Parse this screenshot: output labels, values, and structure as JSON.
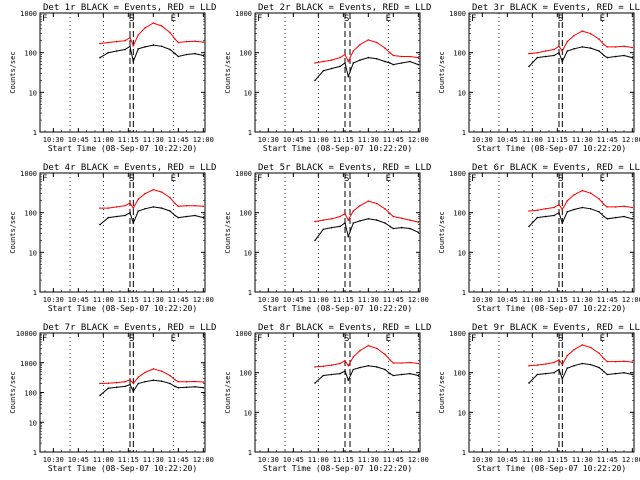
{
  "figure": {
    "xlabel": "Start Time (08-Sep-07 10:22:20)",
    "ylabel": "Counts/sec",
    "marker_labels": [
      "F",
      "S",
      "E"
    ],
    "series_colors": {
      "events": "#000000",
      "lld": "#ff0000"
    }
  },
  "chart_data": [
    {
      "type": "line",
      "title": "Det 1r BLACK = Events, RED = LLD",
      "xlabel": "Start Time (08-Sep-07 10:22:20)",
      "ylabel": "Counts/sec",
      "log_y": true,
      "x_ticks": [
        "10:30",
        "10:45",
        "11:00",
        "11:15",
        "11:30",
        "11:45",
        "12:00"
      ],
      "y_ticks": [
        "1",
        "10",
        "100",
        "1000"
      ],
      "ylim": [
        1,
        1000
      ],
      "x_time": [
        "10:58",
        "11:03",
        "11:08",
        "11:13",
        "11:16",
        "11:18",
        "11:21",
        "11:25",
        "11:30",
        "11:35",
        "11:40",
        "11:43",
        "11:45",
        "11:50",
        "11:55",
        "12:00"
      ],
      "series": [
        {
          "name": "Events",
          "values": [
            75,
            100,
            110,
            120,
            145,
            60,
            125,
            140,
            155,
            145,
            120,
            95,
            80,
            90,
            95,
            85
          ]
        },
        {
          "name": "LLD",
          "values": [
            170,
            180,
            190,
            200,
            240,
            150,
            280,
            420,
            560,
            470,
            320,
            220,
            180,
            190,
            195,
            185
          ]
        }
      ],
      "markers": {
        "F": "10:22",
        "S": "11:17",
        "E": "11:42"
      },
      "dashed": [
        "11:16",
        "11:18"
      ],
      "dotted": [
        "10:40",
        "11:00",
        "11:42"
      ]
    },
    {
      "type": "line",
      "title": "Det 2r BLACK = Events, RED = LLD",
      "xlabel": "Start Time (08-Sep-07 10:22:20)",
      "ylabel": "Counts/sec",
      "log_y": true,
      "x_ticks": [
        "10:30",
        "10:45",
        "11:00",
        "11:15",
        "11:30",
        "11:45",
        "12:00"
      ],
      "y_ticks": [
        "1",
        "10",
        "100",
        "1000"
      ],
      "ylim": [
        1,
        1000
      ],
      "x_time": [
        "10:58",
        "11:03",
        "11:08",
        "11:13",
        "11:16",
        "11:18",
        "11:21",
        "11:25",
        "11:30",
        "11:35",
        "11:40",
        "11:43",
        "11:45",
        "11:50",
        "11:55",
        "12:00"
      ],
      "series": [
        {
          "name": "Events",
          "values": [
            20,
            35,
            40,
            45,
            55,
            25,
            55,
            65,
            75,
            70,
            60,
            55,
            50,
            55,
            60,
            50
          ]
        },
        {
          "name": "LLD",
          "values": [
            55,
            60,
            65,
            75,
            90,
            60,
            110,
            160,
            210,
            180,
            130,
            100,
            85,
            80,
            80,
            75
          ]
        }
      ],
      "markers": {
        "F": "10:22",
        "S": "11:17",
        "E": "11:42"
      },
      "dashed": [
        "11:16",
        "11:19"
      ],
      "dotted": [
        "10:40",
        "11:00",
        "11:42"
      ]
    },
    {
      "type": "line",
      "title": "Det 3r BLACK = Events, RED = LLD",
      "xlabel": "Start Time (08-Sep-07 10:22:20)",
      "ylabel": "Counts/sec",
      "log_y": true,
      "x_ticks": [
        "10:30",
        "10:45",
        "11:00",
        "11:15",
        "11:30",
        "11:45",
        "12:00"
      ],
      "y_ticks": [
        "1",
        "10",
        "100",
        "1000"
      ],
      "ylim": [
        1,
        1000
      ],
      "x_time": [
        "10:58",
        "11:03",
        "11:08",
        "11:13",
        "11:16",
        "11:18",
        "11:21",
        "11:25",
        "11:30",
        "11:35",
        "11:40",
        "11:43",
        "11:45",
        "11:50",
        "11:55",
        "12:00"
      ],
      "series": [
        {
          "name": "Events",
          "values": [
            45,
            75,
            80,
            85,
            100,
            60,
            110,
            125,
            140,
            130,
            110,
            85,
            75,
            80,
            85,
            75
          ]
        },
        {
          "name": "LLD",
          "values": [
            95,
            100,
            110,
            120,
            145,
            110,
            190,
            270,
            350,
            300,
            220,
            160,
            140,
            140,
            145,
            135
          ]
        }
      ],
      "markers": {
        "F": "10:22",
        "S": "11:17",
        "E": "11:42"
      },
      "dashed": [
        "11:16",
        "11:18"
      ],
      "dotted": [
        "10:40",
        "11:00",
        "11:42"
      ]
    },
    {
      "type": "line",
      "title": "Det 4r BLACK = Events, RED = LLD",
      "xlabel": "Start Time (08-Sep-07 10:22:20)",
      "ylabel": "Counts/sec",
      "log_y": true,
      "x_ticks": [
        "10:30",
        "10:45",
        "11:00",
        "11:15",
        "11:30",
        "11:45",
        "12:00"
      ],
      "y_ticks": [
        "1",
        "10",
        "100",
        "1000"
      ],
      "ylim": [
        1,
        1000
      ],
      "x_time": [
        "10:58",
        "11:03",
        "11:08",
        "11:13",
        "11:16",
        "11:18",
        "11:21",
        "11:25",
        "11:30",
        "11:35",
        "11:40",
        "11:43",
        "11:45",
        "11:50",
        "11:55",
        "12:00"
      ],
      "series": [
        {
          "name": "Events",
          "values": [
            50,
            75,
            80,
            85,
            100,
            55,
            110,
            125,
            140,
            130,
            110,
            85,
            75,
            80,
            85,
            75
          ]
        },
        {
          "name": "LLD",
          "values": [
            130,
            130,
            140,
            150,
            175,
            130,
            220,
            300,
            380,
            330,
            240,
            170,
            145,
            150,
            150,
            145
          ]
        }
      ],
      "markers": {
        "F": "10:22",
        "S": "11:17",
        "E": "11:42"
      },
      "dashed": [
        "11:16",
        "11:18"
      ],
      "dotted": [
        "10:40",
        "11:00",
        "11:42"
      ]
    },
    {
      "type": "line",
      "title": "Det 5r BLACK = Events, RED = LLD",
      "xlabel": "Start Time (08-Sep-07 10:22:20)",
      "ylabel": "Counts/sec",
      "log_y": true,
      "x_ticks": [
        "10:30",
        "10:45",
        "11:00",
        "11:15",
        "11:30",
        "11:45",
        "12:00"
      ],
      "y_ticks": [
        "1",
        "10",
        "100",
        "1000"
      ],
      "ylim": [
        1,
        1000
      ],
      "x_time": [
        "10:58",
        "11:03",
        "11:08",
        "11:13",
        "11:16",
        "11:18",
        "11:21",
        "11:25",
        "11:30",
        "11:35",
        "11:40",
        "11:43",
        "11:45",
        "11:50",
        "11:55",
        "12:00"
      ],
      "series": [
        {
          "name": "Events",
          "values": [
            20,
            38,
            42,
            45,
            55,
            25,
            55,
            62,
            70,
            65,
            55,
            45,
            40,
            42,
            40,
            32
          ]
        },
        {
          "name": "LLD",
          "values": [
            60,
            65,
            70,
            80,
            95,
            65,
            110,
            150,
            195,
            170,
            125,
            95,
            80,
            72,
            65,
            58
          ]
        }
      ],
      "markers": {
        "F": "10:22",
        "S": "11:17",
        "E": "11:42"
      },
      "dashed": [
        "11:16",
        "11:19"
      ],
      "dotted": [
        "10:40",
        "11:00",
        "11:42"
      ]
    },
    {
      "type": "line",
      "title": "Det 6r BLACK = Events, RED = LLD",
      "xlabel": "Start Time (08-Sep-07 10:22:20)",
      "ylabel": "Counts/sec",
      "log_y": true,
      "x_ticks": [
        "10:30",
        "10:45",
        "11:00",
        "11:15",
        "11:30",
        "11:45",
        "12:00"
      ],
      "y_ticks": [
        "1",
        "10",
        "100",
        "1000"
      ],
      "ylim": [
        1,
        1000
      ],
      "x_time": [
        "10:58",
        "11:03",
        "11:08",
        "11:13",
        "11:16",
        "11:18",
        "11:21",
        "11:25",
        "11:30",
        "11:35",
        "11:40",
        "11:43",
        "11:45",
        "11:50",
        "11:55",
        "12:00"
      ],
      "series": [
        {
          "name": "Events",
          "values": [
            45,
            75,
            80,
            85,
            100,
            55,
            105,
            120,
            135,
            125,
            105,
            80,
            70,
            75,
            80,
            70
          ]
        },
        {
          "name": "LLD",
          "values": [
            110,
            115,
            125,
            135,
            160,
            120,
            200,
            280,
            360,
            310,
            225,
            160,
            140,
            140,
            145,
            135
          ]
        }
      ],
      "markers": {
        "F": "10:22",
        "S": "11:17",
        "E": "11:42"
      },
      "dashed": [
        "11:16",
        "11:18"
      ],
      "dotted": [
        "10:40",
        "11:00",
        "11:42"
      ]
    },
    {
      "type": "line",
      "title": "Det 7r BLACK = Events, RED = LLD",
      "xlabel": "Start Time (08-Sep-07 10:22:20)",
      "ylabel": "Counts/sec",
      "log_y": true,
      "x_ticks": [
        "10:30",
        "10:45",
        "11:00",
        "11:15",
        "11:30",
        "11:45",
        "12:00"
      ],
      "y_ticks": [
        "1",
        "10",
        "100",
        "1000",
        "10000"
      ],
      "ylim": [
        1,
        10000
      ],
      "x_time": [
        "10:58",
        "11:03",
        "11:08",
        "11:13",
        "11:16",
        "11:18",
        "11:21",
        "11:25",
        "11:30",
        "11:35",
        "11:40",
        "11:43",
        "11:45",
        "11:50",
        "11:55",
        "12:00"
      ],
      "series": [
        {
          "name": "Events",
          "values": [
            80,
            140,
            150,
            160,
            185,
            110,
            200,
            230,
            260,
            240,
            200,
            160,
            145,
            150,
            155,
            145
          ]
        },
        {
          "name": "LLD",
          "values": [
            200,
            205,
            215,
            230,
            270,
            200,
            330,
            470,
            620,
            520,
            370,
            270,
            230,
            230,
            235,
            225
          ]
        }
      ],
      "markers": {
        "F": "10:22",
        "S": "11:17",
        "E": "11:42"
      },
      "dashed": [
        "11:16",
        "11:18"
      ],
      "dotted": [
        "10:40",
        "11:00",
        "11:42"
      ]
    },
    {
      "type": "line",
      "title": "Det 8r BLACK = Events, RED = LLD",
      "xlabel": "Start Time (08-Sep-07 10:22:20)",
      "ylabel": "Counts/sec",
      "log_y": true,
      "x_ticks": [
        "10:30",
        "10:45",
        "11:00",
        "11:15",
        "11:30",
        "11:45",
        "12:00"
      ],
      "y_ticks": [
        "1",
        "10",
        "100",
        "1000"
      ],
      "ylim": [
        1,
        1000
      ],
      "x_time": [
        "10:58",
        "11:03",
        "11:08",
        "11:13",
        "11:16",
        "11:18",
        "11:21",
        "11:25",
        "11:30",
        "11:35",
        "11:40",
        "11:43",
        "11:45",
        "11:50",
        "11:55",
        "12:00"
      ],
      "series": [
        {
          "name": "Events",
          "values": [
            55,
            85,
            90,
            95,
            110,
            65,
            120,
            135,
            150,
            140,
            120,
            95,
            85,
            90,
            95,
            85
          ]
        },
        {
          "name": "LLD",
          "values": [
            140,
            145,
            155,
            170,
            200,
            150,
            250,
            360,
            480,
            410,
            290,
            210,
            175,
            175,
            180,
            170
          ]
        }
      ],
      "markers": {
        "F": "10:22",
        "S": "11:17",
        "E": "11:42"
      },
      "dashed": [
        "11:16",
        "11:19"
      ],
      "dotted": [
        "10:40",
        "11:00",
        "11:42"
      ]
    },
    {
      "type": "line",
      "title": "Det 9r BLACK = Events, RED = LLD",
      "xlabel": "Start Time (08-Sep-07 10:22:20)",
      "ylabel": "Counts/sec",
      "log_y": true,
      "x_ticks": [
        "10:30",
        "10:45",
        "11:00",
        "11:15",
        "11:30",
        "11:45",
        "12:00"
      ],
      "y_ticks": [
        "1",
        "10",
        "100",
        "1000"
      ],
      "ylim": [
        1,
        1000
      ],
      "x_time": [
        "10:58",
        "11:03",
        "11:08",
        "11:13",
        "11:16",
        "11:18",
        "11:21",
        "11:25",
        "11:30",
        "11:35",
        "11:40",
        "11:43",
        "11:45",
        "11:50",
        "11:55",
        "12:00"
      ],
      "series": [
        {
          "name": "Events",
          "values": [
            55,
            90,
            95,
            100,
            120,
            70,
            130,
            150,
            170,
            160,
            135,
            105,
            90,
            95,
            100,
            90
          ]
        },
        {
          "name": "LLD",
          "values": [
            150,
            155,
            165,
            180,
            210,
            160,
            270,
            380,
            500,
            430,
            310,
            225,
            190,
            190,
            195,
            185
          ]
        }
      ],
      "markers": {
        "F": "10:22",
        "S": "11:17",
        "E": "11:42"
      },
      "dashed": [
        "11:16",
        "11:18"
      ],
      "dotted": [
        "10:40",
        "11:00",
        "11:42"
      ]
    }
  ]
}
